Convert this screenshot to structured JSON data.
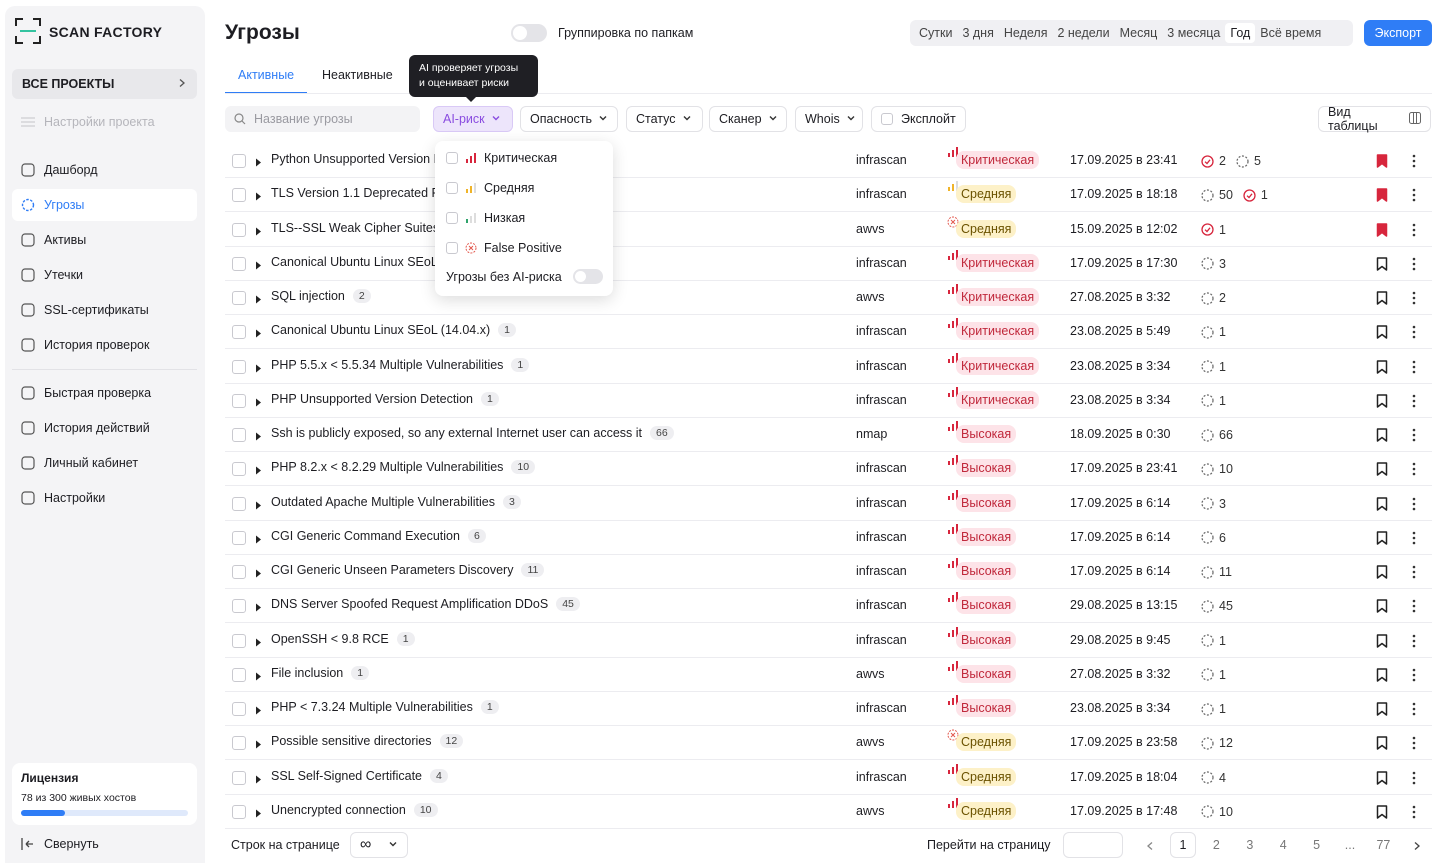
{
  "sidebar": {
    "logo": "SCAN FACTORY",
    "project": "ВСЕ ПРОЕКТЫ",
    "project_settings": "Настройки проекта",
    "nav": [
      "Дашборд",
      "Угрозы",
      "Активы",
      "Утечки",
      "SSL-сертификаты",
      "История проверок"
    ],
    "active_nav": 1,
    "nav2": [
      "Быстрая проверка",
      "История действий",
      "Личный кабинет",
      "Настройки"
    ],
    "license": {
      "title": "Лицензия",
      "text": "78 из 300 живых хостов"
    },
    "collapse": "Свернуть"
  },
  "header": {
    "title": "Угрозы",
    "group_toggle": "Группировка по папкам",
    "periods": [
      "Сутки",
      "3 дня",
      "Неделя",
      "2 недели",
      "Месяц",
      "3 месяца",
      "Год",
      "Всё время"
    ],
    "active_period": 6,
    "export": "Экспорт"
  },
  "tabs": [
    "Активные",
    "Неактивные"
  ],
  "active_tab": 0,
  "tooltip": [
    "AI проверяет угрозы",
    "и оценивает риски"
  ],
  "filters": {
    "search": "Название угрозы",
    "buttons": [
      "AI-риск",
      "Опасность",
      "Статус",
      "Сканер",
      "Whois"
    ],
    "exploit": "Эксплойт",
    "view": "Вид таблицы"
  },
  "dropdown": {
    "options": [
      {
        "text": "Критическая",
        "icon": "red"
      },
      {
        "text": "Средняя",
        "icon": "yellow"
      },
      {
        "text": "Низкая",
        "icon": "green"
      },
      {
        "text": "False Positive",
        "icon": "fp"
      }
    ],
    "toggle": "Угрозы без AI-риска"
  },
  "rows": [
    {
      "name": "Python Unsupported Version D",
      "scanner": "infrascan",
      "severity": "Критическая",
      "tone": "red",
      "ai": "red",
      "date": "17.09.2025 в 23:41",
      "statuses": [
        {
          "value": 2,
          "kind": "confirmed"
        },
        {
          "value": 5,
          "kind": "pending"
        }
      ],
      "bookmarked": true
    },
    {
      "name": "TLS Version 1.1 Deprecated Pro",
      "scanner": "infrascan",
      "severity": "Средняя",
      "tone": "yellow",
      "ai": "yellow",
      "date": "17.09.2025 в 18:18",
      "statuses": [
        {
          "value": 50,
          "kind": "pending"
        },
        {
          "value": 1,
          "kind": "confirmed"
        }
      ],
      "bookmarked": true
    },
    {
      "name": "TLS--SSL Weak Cipher Suites",
      "scanner": "awvs",
      "severity": "Средняя",
      "tone": "yellow",
      "ai": "fp",
      "date": "15.09.2025 в 12:02",
      "statuses": [
        {
          "value": 1,
          "kind": "confirmed"
        }
      ],
      "bookmarked": true
    },
    {
      "name": "Canonical Ubuntu Linux SEoL",
      "scanner": "infrascan",
      "severity": "Критическая",
      "tone": "red",
      "ai": "red",
      "date": "17.09.2025 в 17:30",
      "statuses": [
        {
          "value": 3,
          "kind": "pending"
        }
      ],
      "bookmarked": false
    },
    {
      "name": "SQL injection",
      "count": 2,
      "scanner": "awvs",
      "severity": "Критическая",
      "tone": "red",
      "ai": "red",
      "date": "27.08.2025 в 3:32",
      "statuses": [
        {
          "value": 2,
          "kind": "pending"
        }
      ],
      "bookmarked": false
    },
    {
      "name": "Canonical Ubuntu Linux SEoL (14.04.x)",
      "count": 1,
      "scanner": "infrascan",
      "severity": "Критическая",
      "tone": "red",
      "ai": "red",
      "date": "23.08.2025 в 5:49",
      "statuses": [
        {
          "value": 1,
          "kind": "pending"
        }
      ],
      "bookmarked": false
    },
    {
      "name": "PHP 5.5.x < 5.5.34 Multiple Vulnerabilities",
      "count": 1,
      "scanner": "infrascan",
      "severity": "Критическая",
      "tone": "red",
      "ai": "red",
      "date": "23.08.2025 в 3:34",
      "statuses": [
        {
          "value": 1,
          "kind": "pending"
        }
      ],
      "bookmarked": false
    },
    {
      "name": "PHP Unsupported Version Detection",
      "count": 1,
      "scanner": "infrascan",
      "severity": "Критическая",
      "tone": "red",
      "ai": "red",
      "date": "23.08.2025 в 3:34",
      "statuses": [
        {
          "value": 1,
          "kind": "pending"
        }
      ],
      "bookmarked": false
    },
    {
      "name": "Ssh is publicly exposed, so any external Internet user can access it",
      "count": 66,
      "scanner": "nmap",
      "severity": "Высокая",
      "tone": "red",
      "ai": "red",
      "date": "18.09.2025 в 0:30",
      "statuses": [
        {
          "value": 66,
          "kind": "pending"
        }
      ],
      "bookmarked": false
    },
    {
      "name": "PHP 8.2.x < 8.2.29 Multiple Vulnerabilities",
      "count": 10,
      "scanner": "infrascan",
      "severity": "Высокая",
      "tone": "red",
      "ai": "red",
      "date": "17.09.2025 в 23:41",
      "statuses": [
        {
          "value": 10,
          "kind": "pending"
        }
      ],
      "bookmarked": false
    },
    {
      "name": "Outdated Apache Multiple Vulnerabilities",
      "count": 3,
      "scanner": "infrascan",
      "severity": "Высокая",
      "tone": "red",
      "ai": "red",
      "date": "17.09.2025 в 6:14",
      "statuses": [
        {
          "value": 3,
          "kind": "pending"
        }
      ],
      "bookmarked": false
    },
    {
      "name": "CGI Generic Command Execution",
      "count": 6,
      "scanner": "infrascan",
      "severity": "Высокая",
      "tone": "red",
      "ai": "red",
      "date": "17.09.2025 в 6:14",
      "statuses": [
        {
          "value": 6,
          "kind": "pending"
        }
      ],
      "bookmarked": false
    },
    {
      "name": "CGI Generic Unseen Parameters Discovery",
      "count": 11,
      "scanner": "infrascan",
      "severity": "Высокая",
      "tone": "red",
      "ai": "red",
      "date": "17.09.2025 в 6:14",
      "statuses": [
        {
          "value": 11,
          "kind": "pending"
        }
      ],
      "bookmarked": false
    },
    {
      "name": "DNS Server Spoofed Request Amplification DDoS",
      "count": 45,
      "scanner": "infrascan",
      "severity": "Высокая",
      "tone": "red",
      "ai": "red",
      "date": "29.08.2025 в 13:15",
      "statuses": [
        {
          "value": 45,
          "kind": "pending"
        }
      ],
      "bookmarked": false
    },
    {
      "name": "OpenSSH < 9.8 RCE",
      "count": 1,
      "scanner": "infrascan",
      "severity": "Высокая",
      "tone": "red",
      "ai": "red",
      "date": "29.08.2025 в 9:45",
      "statuses": [
        {
          "value": 1,
          "kind": "pending"
        }
      ],
      "bookmarked": false
    },
    {
      "name": "File inclusion",
      "count": 1,
      "scanner": "awvs",
      "severity": "Высокая",
      "tone": "red",
      "ai": "red",
      "date": "27.08.2025 в 3:32",
      "statuses": [
        {
          "value": 1,
          "kind": "pending"
        }
      ],
      "bookmarked": false
    },
    {
      "name": "PHP < 7.3.24 Multiple Vulnerabilities",
      "count": 1,
      "scanner": "infrascan",
      "severity": "Высокая",
      "tone": "red",
      "ai": "red",
      "date": "23.08.2025 в 3:34",
      "statuses": [
        {
          "value": 1,
          "kind": "pending"
        }
      ],
      "bookmarked": false
    },
    {
      "name": "Possible sensitive directories",
      "count": 12,
      "scanner": "awvs",
      "severity": "Средняя",
      "tone": "yellow",
      "ai": "fp",
      "date": "17.09.2025 в 23:58",
      "statuses": [
        {
          "value": 12,
          "kind": "pending"
        }
      ],
      "bookmarked": false
    },
    {
      "name": "SSL Self-Signed Certificate",
      "count": 4,
      "scanner": "infrascan",
      "severity": "Средняя",
      "tone": "yellow",
      "ai": "red",
      "date": "17.09.2025 в 18:04",
      "statuses": [
        {
          "value": 4,
          "kind": "pending"
        }
      ],
      "bookmarked": false
    },
    {
      "name": "Unencrypted connection",
      "count": 10,
      "scanner": "awvs",
      "severity": "Средняя",
      "tone": "yellow",
      "ai": "red",
      "date": "17.09.2025 в 17:48",
      "statuses": [
        {
          "value": 10,
          "kind": "pending"
        }
      ],
      "bookmarked": false
    }
  ],
  "footer": {
    "rows_label": "Строк на странице",
    "rows_value": "∞",
    "goto": "Перейти на страницу",
    "pages": [
      "1",
      "2",
      "3",
      "4",
      "5",
      "...",
      "77"
    ],
    "active_page": 0
  }
}
